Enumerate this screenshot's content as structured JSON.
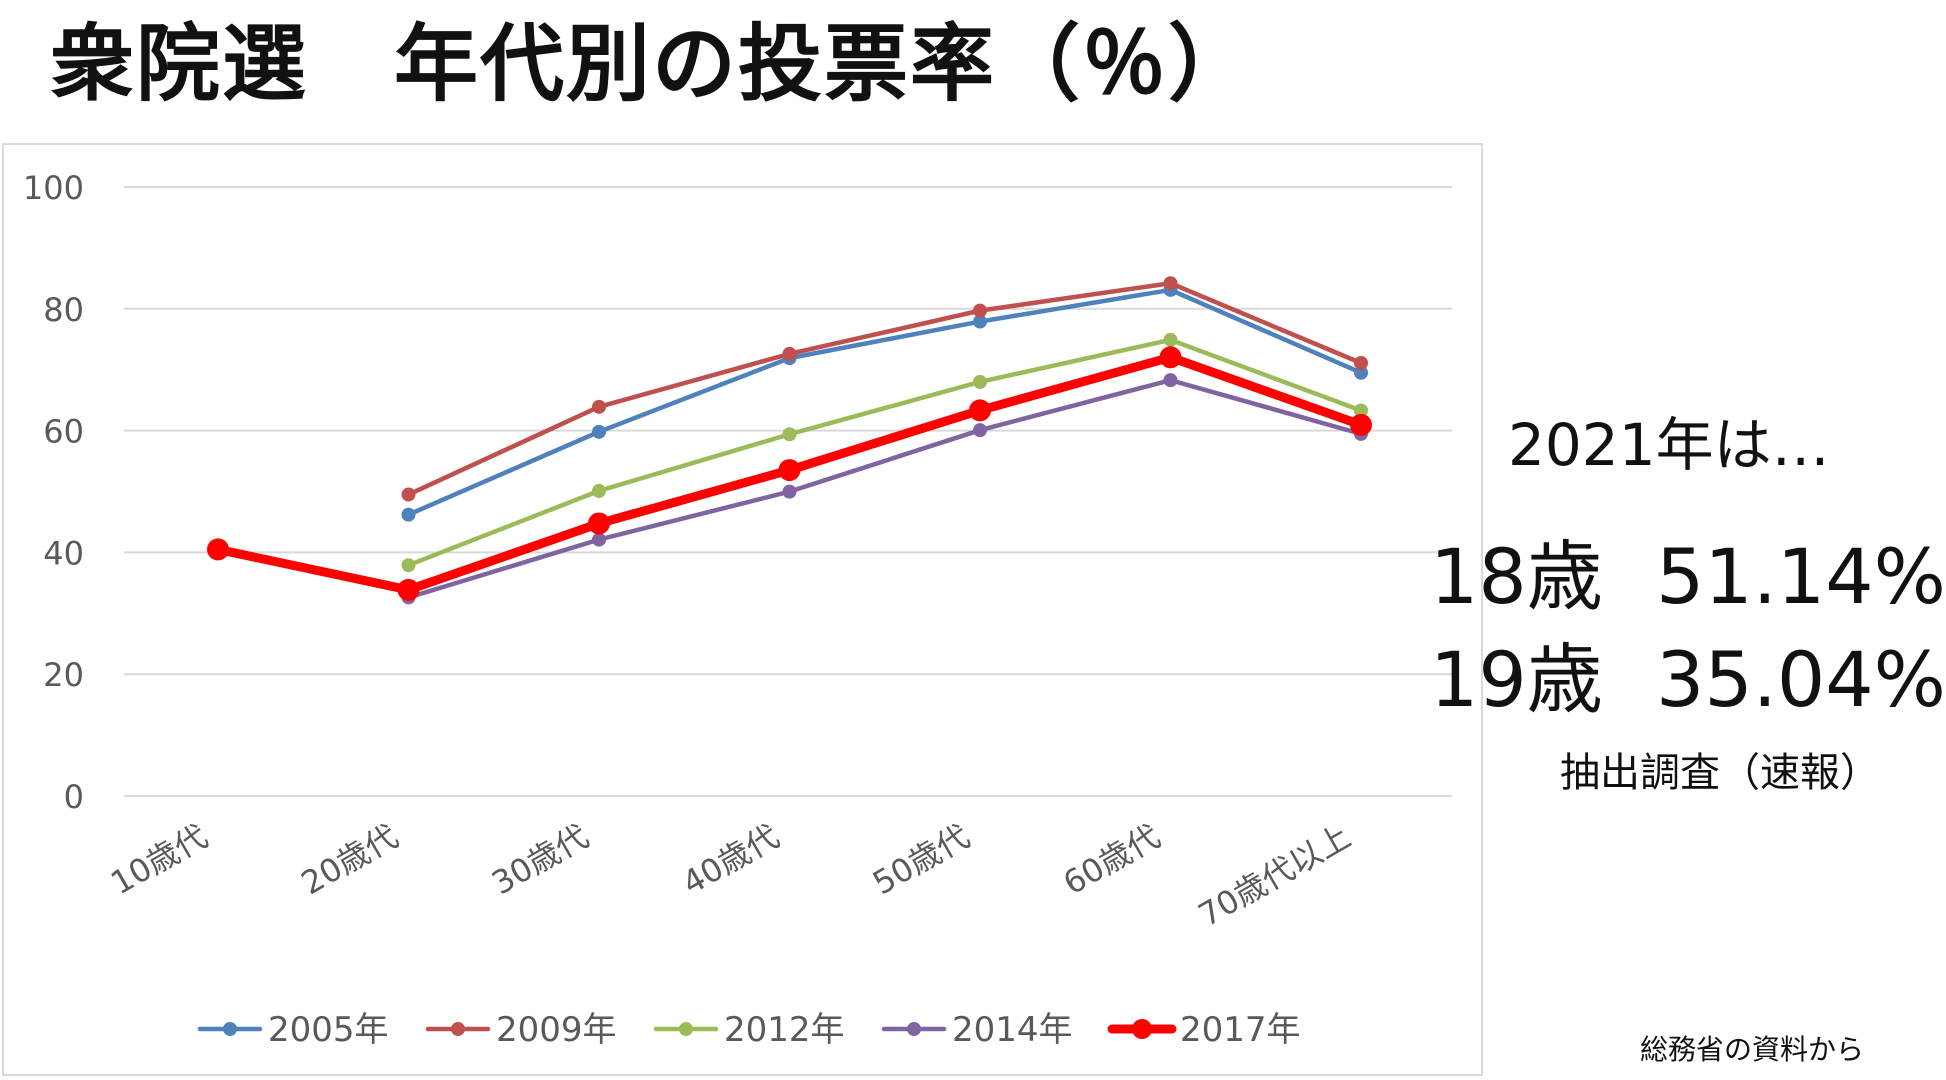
{
  "title": "衆院選　年代別の投票率（％）",
  "side_panel": {
    "heading": "2021年は…",
    "stats": [
      {
        "label": "18歳",
        "value": "51.14%"
      },
      {
        "label": "19歳",
        "value": "35.04%"
      }
    ],
    "note": "抽出調査（速報）"
  },
  "source": "総務省の資料から",
  "chart_data": {
    "type": "line",
    "title": "",
    "xlabel": "",
    "ylabel": "",
    "ylim": [
      0,
      100
    ],
    "yticks": [
      0,
      20,
      40,
      60,
      80,
      100
    ],
    "grid": true,
    "legend_position": "bottom",
    "categories": [
      "10歳代",
      "20歳代",
      "30歳代",
      "40歳代",
      "50歳代",
      "60歳代",
      "70歳代以上"
    ],
    "series": [
      {
        "name": "2005年",
        "color": "#4f81bd",
        "values": [
          null,
          46.2,
          59.8,
          71.9,
          77.9,
          83.1,
          69.5
        ]
      },
      {
        "name": "2009年",
        "color": "#c0504d",
        "values": [
          null,
          49.5,
          63.9,
          72.6,
          79.7,
          84.2,
          71.1
        ]
      },
      {
        "name": "2012年",
        "color": "#9bbb59",
        "values": [
          null,
          37.9,
          50.1,
          59.4,
          68.0,
          74.9,
          63.3
        ]
      },
      {
        "name": "2014年",
        "color": "#8064a2",
        "values": [
          null,
          32.6,
          42.1,
          49.98,
          60.07,
          68.28,
          59.46
        ]
      },
      {
        "name": "2017年",
        "color": "#ff0000",
        "values": [
          40.49,
          33.85,
          44.75,
          53.52,
          63.32,
          72.04,
          60.94
        ]
      }
    ]
  }
}
